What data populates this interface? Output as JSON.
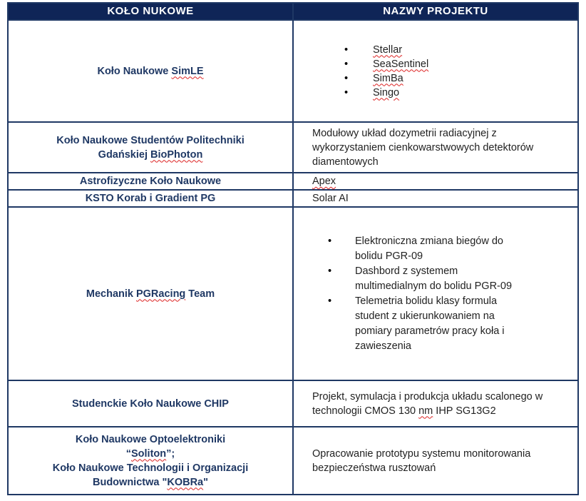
{
  "headers": {
    "col1": "KOŁO NUKOWE",
    "col2": "NAZWY PROJEKTU"
  },
  "rows": [
    {
      "club_pre": "Koło Naukowe ",
      "club_sp": "SimLE",
      "projects": [
        "Stellar",
        "SeaSentinel",
        "SimBa",
        "Singo"
      ]
    },
    {
      "club_l1": "Koło Naukowe Studentów  Politechniki",
      "club_l2_pre": "Gdańskiej ",
      "club_l2_sp": "BioPhoton",
      "project": "Modułowy układ dozymetrii radiacyjnej z wykorzystaniem cienkowarstwowych detektorów diamentowych"
    },
    {
      "club": "Astrofizyczne Koło Naukowe",
      "project": "Apex"
    },
    {
      "club": "KSTO Korab i Gradient PG",
      "project": "Solar AI"
    },
    {
      "club_pre": "Mechanik ",
      "club_sp": "PGRacing",
      "club_post": " Team",
      "projects": [
        "Elektroniczna zmiana biegów do bolidu PGR-09",
        "Dashbord z systemem multimedialnym do bolidu PGR-09",
        "Telemetria bolidu klasy formula student z ukierunkowaniem na pomiary parametrów pracy  koła i zawieszenia"
      ]
    },
    {
      "club": "Studenckie Koło Naukowe CHIP",
      "project_pre": "Projekt, symulacja i produkcja układu scalonego w technologii CMOS 130 ",
      "project_sp": "nm",
      "project_post": " IHP SG13G2"
    },
    {
      "club_l1": "Koło Naukowe Optoelektroniki",
      "club_l2_pre": "“",
      "club_l2_sp": "Soliton",
      "club_l2_post": "”;",
      "club_l3": "Koło Naukowe Technologii i  Organizacji",
      "club_l4_pre": "Budownictwa \"",
      "club_l4_sp": "KOBRa",
      "club_l4_post": "\"",
      "project": "Opracowanie prototypu systemu monitorowania  bezpieczeństwa rusztowań"
    }
  ]
}
